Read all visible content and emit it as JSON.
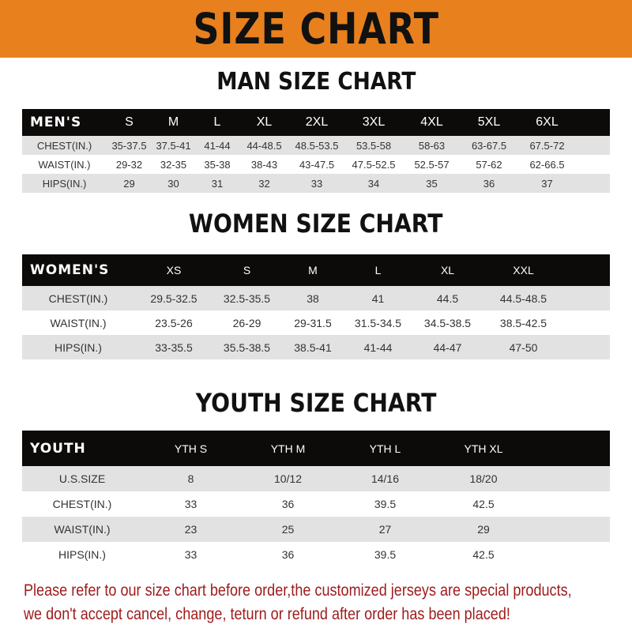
{
  "banner": {
    "title": "SIZE CHART",
    "color": "#e8801e"
  },
  "men": {
    "title": "MAN SIZE CHART",
    "corner": "MEN'S",
    "sizes": [
      "S",
      "M",
      "L",
      "XL",
      "2XL",
      "3XL",
      "4XL",
      "5XL",
      "6XL"
    ],
    "rows": [
      {
        "label": "CHEST(IN.)",
        "values": [
          "35-37.5",
          "37.5-41",
          "41-44",
          "44-48.5",
          "48.5-53.5",
          "53.5-58",
          "58-63",
          "63-67.5",
          "67.5-72"
        ]
      },
      {
        "label": "WAIST(IN.)",
        "values": [
          "29-32",
          "32-35",
          "35-38",
          "38-43",
          "43-47.5",
          "47.5-52.5",
          "52.5-57",
          "57-62",
          "62-66.5"
        ]
      },
      {
        "label": "HIPS(IN.)",
        "values": [
          "29",
          "30",
          "31",
          "32",
          "33",
          "34",
          "35",
          "36",
          "37"
        ]
      }
    ]
  },
  "women": {
    "title": "WOMEN SIZE CHART",
    "corner": "WOMEN'S",
    "sizes": [
      "XS",
      "S",
      "M",
      "L",
      "XL",
      "XXL"
    ],
    "rows": [
      {
        "label": "CHEST(IN.)",
        "values": [
          "29.5-32.5",
          "32.5-35.5",
          "38",
          "41",
          "44.5",
          "44.5-48.5"
        ]
      },
      {
        "label": "WAIST(IN.)",
        "values": [
          "23.5-26",
          "26-29",
          "29-31.5",
          "31.5-34.5",
          "34.5-38.5",
          "38.5-42.5"
        ]
      },
      {
        "label": "HIPS(IN.)",
        "values": [
          "33-35.5",
          "35.5-38.5",
          "38.5-41",
          "41-44",
          "44-47",
          "47-50"
        ]
      }
    ]
  },
  "youth": {
    "title": "YOUTH SIZE CHART",
    "corner": "YOUTH",
    "sizes": [
      "YTH S",
      "YTH M",
      "YTH L",
      "YTH XL"
    ],
    "rows": [
      {
        "label": "U.S.SIZE",
        "values": [
          "8",
          "10/12",
          "14/16",
          "18/20"
        ]
      },
      {
        "label": "CHEST(IN.)",
        "values": [
          "33",
          "36",
          "39.5",
          "42.5"
        ]
      },
      {
        "label": "WAIST(IN.)",
        "values": [
          "23",
          "25",
          "27",
          "29"
        ]
      },
      {
        "label": "HIPS(IN.)",
        "values": [
          "33",
          "36",
          "39.5",
          "42.5"
        ]
      }
    ]
  },
  "note": {
    "line1": "Please refer to our size chart before order,the customized jerseys are special products,",
    "line2": "we don't accept cancel, change, teturn or refund after order has been placed!",
    "color": "#9e1b1b"
  }
}
